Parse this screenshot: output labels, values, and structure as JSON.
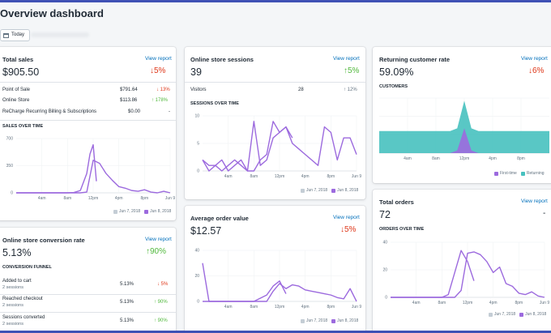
{
  "page": {
    "title": "Overview dashboard",
    "date_button": "Today"
  },
  "colors": {
    "primary": "#9c6ade",
    "compare": "#c4cdd5",
    "returning": "#47c1bf",
    "link": "#006fbb",
    "down": "#de3618",
    "up": "#50b83c"
  },
  "total_sales": {
    "title": "Total sales",
    "link": "View report",
    "value": "$905.50",
    "change": "↓5%",
    "rows": [
      {
        "label": "Point of Sale",
        "value": "$791.64",
        "change": "↓ 13%"
      },
      {
        "label": "Online Store",
        "value": "$113.86",
        "change": "↑ 178%"
      },
      {
        "label": "ReCharge Recurring Billing & Subscriptions",
        "value": "$0.00",
        "change": "-"
      }
    ],
    "section": "SALES OVER TIME",
    "legend": [
      "Jun 7, 2018",
      "Jun 8, 2018"
    ]
  },
  "sessions": {
    "title": "Online store sessions",
    "link": "View report",
    "value": "39",
    "change": "↑5%",
    "row": {
      "label": "Visitors",
      "value": "28",
      "change": "↑ 12%"
    },
    "section": "SESSIONS OVER TIME",
    "legend": [
      "Jun 7, 2018",
      "Jun 8, 2018"
    ]
  },
  "returning": {
    "title": "Returning customer rate",
    "link": "View report",
    "value": "59.09%",
    "change": "↓6%",
    "section": "CUSTOMERS",
    "legend": [
      "First-time",
      "Returning"
    ]
  },
  "conversion": {
    "title": "Online store conversion rate",
    "link": "View report",
    "value": "5.13%",
    "change": "↑90%",
    "section": "CONVERSION FUNNEL",
    "rows": [
      {
        "label": "Added to cart",
        "sub": "2 sessions",
        "value": "5.13%",
        "change": "↓ 5%"
      },
      {
        "label": "Reached checkout",
        "sub": "2 sessions",
        "value": "5.13%",
        "change": "↑ 90%"
      },
      {
        "label": "Sessions converted",
        "sub": "2 sessions",
        "value": "5.13%",
        "change": "↑ 90%"
      }
    ]
  },
  "aov": {
    "title": "Average order value",
    "link": "View report",
    "value": "$12.57",
    "change": "↓5%",
    "legend": [
      "Jun 7, 2018",
      "Jun 8, 2018"
    ]
  },
  "orders": {
    "title": "Total orders",
    "link": "View report",
    "value": "72",
    "change": "-",
    "section": "ORDERS OVER TIME",
    "legend": [
      "Jun 7, 2018",
      "Jun 8, 2018"
    ]
  },
  "chart_data": [
    {
      "type": "line",
      "name_ref": "sales-over-time",
      "x_ticks": [
        "4am",
        "8am",
        "12pm",
        "4pm",
        "8pm",
        "Jun 9"
      ],
      "y_ticks": [
        "700",
        "350",
        "0"
      ],
      "ylim": [
        0,
        700
      ],
      "xlim": [
        0,
        24
      ],
      "grid": true,
      "legend": "bottom-right",
      "series": [
        {
          "name": "Jun 7, 2018",
          "x": [
            0,
            2,
            4,
            6,
            8,
            10,
            11,
            12,
            13,
            14,
            15,
            16,
            17,
            18,
            19,
            20,
            21,
            22,
            23,
            24
          ],
          "y": [
            0,
            0,
            0,
            0,
            0,
            0,
            10,
            420,
            380,
            250,
            160,
            80,
            60,
            30,
            20,
            40,
            10,
            0,
            20,
            0
          ]
        },
        {
          "name": "Jun 8, 2018",
          "x": [
            0,
            2,
            4,
            6,
            8,
            9,
            10,
            11,
            11.5,
            12,
            12.5
          ],
          "y": [
            0,
            0,
            0,
            0,
            0,
            5,
            30,
            250,
            500,
            620,
            150
          ]
        }
      ]
    },
    {
      "type": "line",
      "name_ref": "sessions-over-time",
      "x_ticks": [
        "4am",
        "8am",
        "12pm",
        "4pm",
        "8pm",
        "Jun 9"
      ],
      "y_ticks": [
        "10",
        "5",
        "0"
      ],
      "ylim": [
        0,
        10
      ],
      "xlim": [
        0,
        24
      ],
      "grid": true,
      "legend": "bottom-right",
      "series": [
        {
          "name": "Jun 7, 2018",
          "x": [
            0,
            1,
            2,
            3,
            4,
            5,
            6,
            7,
            8,
            9,
            10,
            11,
            12,
            13,
            14,
            15,
            16,
            17,
            18,
            19,
            20,
            21,
            22,
            23,
            24
          ],
          "y": [
            2,
            1,
            1,
            2,
            0,
            1,
            2,
            0,
            9,
            1,
            2,
            6,
            7,
            8,
            5,
            4,
            3,
            2,
            1,
            8,
            7,
            2,
            6,
            6,
            3
          ]
        },
        {
          "name": "Jun 8, 2018",
          "x": [
            0,
            1,
            2,
            3,
            4,
            5,
            6,
            7,
            8,
            9,
            10,
            11,
            12,
            13,
            14
          ],
          "y": [
            2,
            0,
            1,
            0,
            1,
            2,
            1,
            0,
            0,
            2,
            3,
            9,
            7,
            8,
            6
          ]
        }
      ]
    },
    {
      "type": "area",
      "name_ref": "customers",
      "x_ticks": [
        "4am",
        "8am",
        "12pm",
        "4pm",
        "8pm"
      ],
      "xlim": [
        0,
        24
      ],
      "grid": true,
      "legend": "bottom-right",
      "series": [
        {
          "name": "First-time",
          "x": [
            0,
            2,
            4,
            6,
            8,
            10,
            11,
            12,
            13,
            14,
            16,
            18,
            20,
            22,
            24
          ],
          "y": [
            0,
            0,
            0,
            0,
            0,
            0,
            0.05,
            0.45,
            0.05,
            0,
            0,
            0,
            0,
            0,
            0
          ]
        },
        {
          "name": "Returning",
          "x": [
            0,
            2,
            4,
            6,
            8,
            10,
            11,
            12,
            13,
            14,
            16,
            18,
            20,
            22,
            24
          ],
          "y": [
            0,
            0,
            0,
            0,
            0,
            0,
            0.05,
            0.55,
            0.05,
            0,
            0,
            0,
            0,
            0,
            0
          ]
        }
      ]
    },
    {
      "type": "line",
      "name_ref": "average-order-value",
      "x_ticks": [
        "4am",
        "8am",
        "12pm",
        "4pm",
        "8pm",
        "Jun 9"
      ],
      "y_ticks": [
        "40",
        "20",
        "0"
      ],
      "ylim": [
        0,
        40
      ],
      "xlim": [
        0,
        24
      ],
      "grid": true,
      "legend": "bottom-right",
      "series": [
        {
          "name": "Jun 7, 2018",
          "x": [
            0,
            1,
            2,
            4,
            6,
            8,
            10,
            11,
            12,
            13,
            14,
            15,
            16,
            17,
            18,
            19,
            20,
            21,
            22,
            23,
            24
          ],
          "y": [
            30,
            0,
            0,
            0,
            0,
            0,
            0,
            8,
            14,
            10,
            13,
            12,
            9,
            8,
            7,
            6,
            5,
            3,
            2,
            10,
            0
          ]
        },
        {
          "name": "Jun 8, 2018",
          "x": [
            0,
            2,
            4,
            6,
            8,
            10,
            11,
            12,
            13
          ],
          "y": [
            0,
            0,
            0,
            0,
            0,
            5,
            12,
            16,
            6
          ]
        }
      ]
    },
    {
      "type": "line",
      "name_ref": "orders-over-time",
      "x_ticks": [
        "4am",
        "8am",
        "12pm",
        "4pm",
        "8pm",
        "Jun 9"
      ],
      "y_ticks": [
        "40",
        "20",
        "0"
      ],
      "ylim": [
        0,
        40
      ],
      "xlim": [
        0,
        24
      ],
      "grid": true,
      "legend": "bottom-right",
      "series": [
        {
          "name": "Jun 7, 2018",
          "x": [
            0,
            2,
            4,
            6,
            8,
            10,
            11,
            12,
            13,
            14,
            15,
            16,
            17,
            18,
            19,
            20,
            21,
            22,
            23,
            24
          ],
          "y": [
            0,
            0,
            0,
            0,
            0,
            0,
            5,
            32,
            33,
            31,
            26,
            18,
            22,
            10,
            8,
            3,
            2,
            4,
            1,
            0
          ]
        },
        {
          "name": "Jun 8, 2018",
          "x": [
            0,
            2,
            4,
            6,
            8,
            9,
            10,
            11,
            12,
            13
          ],
          "y": [
            0,
            0,
            0,
            0,
            0,
            2,
            18,
            34,
            26,
            12
          ]
        }
      ]
    }
  ]
}
